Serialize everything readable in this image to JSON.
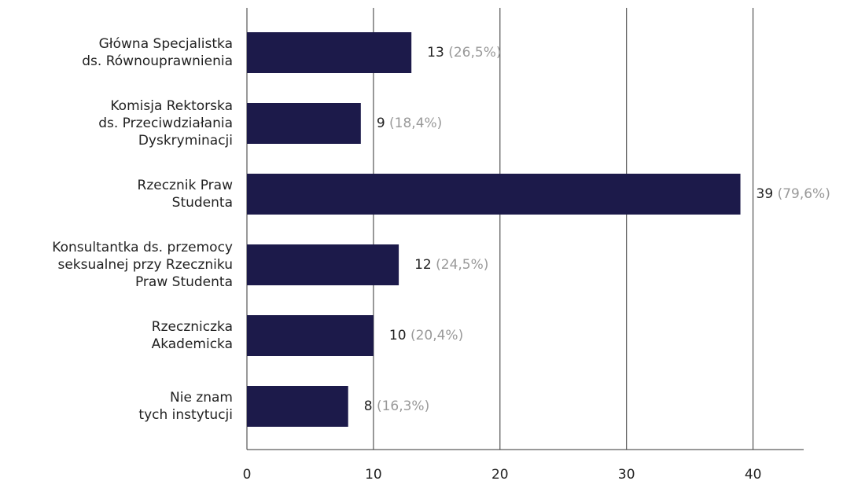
{
  "chart_data": {
    "type": "barh",
    "categories": [
      [
        "Główna Specjalistka",
        "ds. Równouprawnienia"
      ],
      [
        "Komisja Rektorska",
        "ds. Przeciwdziałania",
        "Dyskryminacji"
      ],
      [
        "Rzecznik Praw",
        "Studenta"
      ],
      [
        "Konsultantka ds. przemocy",
        "seksualnej przy Rzeczniku",
        "Praw Studenta"
      ],
      [
        "Rzeczniczka",
        "Akademicka"
      ],
      [
        "Nie znam",
        "tych instytucji"
      ]
    ],
    "values": [
      13,
      9,
      39,
      12,
      10,
      8
    ],
    "percentages": [
      26.5,
      18.4,
      79.6,
      24.5,
      20.4,
      16.3
    ],
    "percentage_labels": [
      "(26,5%)",
      "(18,4%)",
      "(79,6%)",
      "(24,5%)",
      "(20,4%)",
      "(16,3%)"
    ],
    "color": "#1c1a4a",
    "xlim": [
      0,
      44
    ],
    "xticks": [
      0,
      10,
      20,
      30,
      40
    ],
    "grid": true
  }
}
